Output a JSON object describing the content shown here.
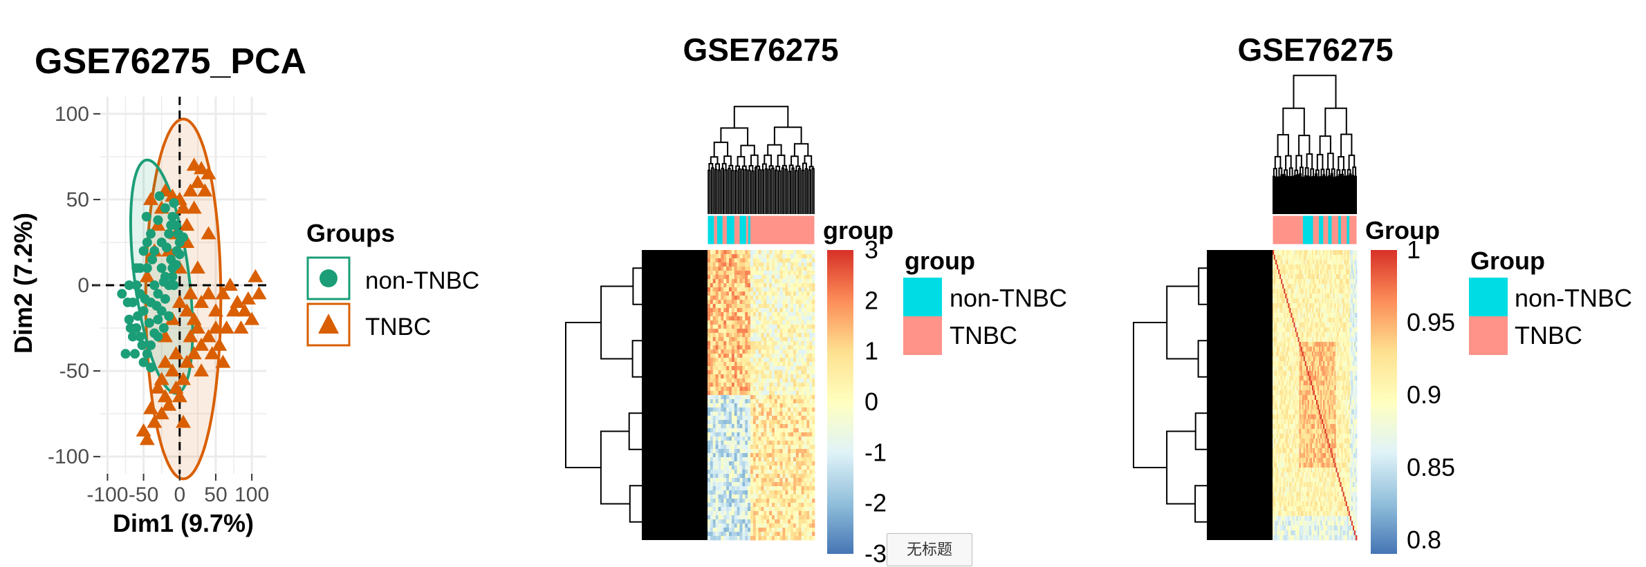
{
  "colors": {
    "non_tnbc_point": "#1b9e77",
    "tnbc_point": "#d95f02",
    "non_tnbc_anno": "#00dce4",
    "tnbc_anno": "#ff938a",
    "grid": "#ebebeb"
  },
  "tooltip": {
    "text": "无标题"
  },
  "chart_data": [
    {
      "type": "scatter",
      "title": "GSE76275_PCA",
      "xlabel": "Dim1 (9.7%)",
      "ylabel": "Dim2 (7.2%)",
      "xlim": [
        -110,
        120
      ],
      "ylim": [
        -110,
        110
      ],
      "x_ticks": [
        -100,
        -50,
        0,
        50,
        100
      ],
      "x_tick_labels": [
        "-100",
        "-50",
        "0",
        "50",
        "100"
      ],
      "y_ticks": [
        -100,
        -50,
        0,
        50,
        100
      ],
      "y_tick_labels": [
        "-100",
        "-50",
        "0",
        "50",
        "100"
      ],
      "grid": true,
      "legend": {
        "title": "Groups",
        "placement": "right",
        "entries": [
          "non-TNBC",
          "TNBC"
        ]
      },
      "series": [
        {
          "name": "non-TNBC",
          "marker": "circle",
          "ellipse": {
            "cx": -25,
            "cy": 5,
            "rx": 72,
            "ry": 36,
            "angle_deg": -68
          },
          "points": [
            [
              -50,
              -45
            ],
            [
              -45,
              -40
            ],
            [
              -40,
              -35
            ],
            [
              -35,
              -28
            ],
            [
              -30,
              -20
            ],
            [
              -25,
              -15
            ],
            [
              -20,
              -8
            ],
            [
              -15,
              0
            ],
            [
              -10,
              5
            ],
            [
              -5,
              12
            ],
            [
              0,
              18
            ],
            [
              5,
              28
            ],
            [
              -5,
              35
            ],
            [
              -10,
              40
            ],
            [
              -20,
              45
            ],
            [
              -30,
              38
            ],
            [
              -40,
              30
            ],
            [
              -50,
              20
            ],
            [
              -55,
              10
            ],
            [
              -60,
              0
            ],
            [
              -65,
              -10
            ],
            [
              -70,
              -20
            ],
            [
              -60,
              -25
            ],
            [
              -50,
              -15
            ],
            [
              -40,
              -10
            ],
            [
              -30,
              -5
            ],
            [
              -20,
              5
            ],
            [
              -10,
              10
            ],
            [
              0,
              25
            ],
            [
              -15,
              30
            ],
            [
              -25,
              25
            ],
            [
              -35,
              20
            ],
            [
              -45,
              10
            ],
            [
              -55,
              -5
            ],
            [
              -65,
              -30
            ],
            [
              -52,
              -35
            ],
            [
              -42,
              -22
            ],
            [
              -32,
              -12
            ],
            [
              -22,
              2
            ],
            [
              -12,
              15
            ],
            [
              -2,
              30
            ],
            [
              -8,
              48
            ],
            [
              -28,
              52
            ],
            [
              -18,
              22
            ],
            [
              -38,
              15
            ],
            [
              -48,
              -8
            ],
            [
              -58,
              -18
            ],
            [
              -68,
              -25
            ],
            [
              -75,
              -40
            ],
            [
              -62,
              -40
            ],
            [
              -72,
              -10
            ],
            [
              -80,
              -5
            ],
            [
              -45,
              25
            ],
            [
              -25,
              10
            ],
            [
              -35,
              0
            ],
            [
              -15,
              -18
            ],
            [
              -30,
              -30
            ],
            [
              -55,
              -30
            ],
            [
              -40,
              -48
            ],
            [
              -12,
              35
            ],
            [
              -4,
              20
            ],
            [
              -46,
              40
            ],
            [
              -60,
              10
            ],
            [
              -70,
              0
            ],
            [
              -22,
              -25
            ],
            [
              -8,
              0
            ]
          ]
        },
        {
          "name": "TNBC",
          "marker": "triangle",
          "ellipse": {
            "cx": 5,
            "cy": -8,
            "rx": 52,
            "ry": 105,
            "angle_deg": 0
          },
          "points": [
            [
              20,
              70
            ],
            [
              30,
              68
            ],
            [
              25,
              60
            ],
            [
              15,
              55
            ],
            [
              0,
              50
            ],
            [
              -10,
              52
            ],
            [
              -20,
              55
            ],
            [
              5,
              45
            ],
            [
              20,
              45
            ],
            [
              35,
              55
            ],
            [
              40,
              65
            ],
            [
              -25,
              45
            ],
            [
              -30,
              35
            ],
            [
              -40,
              50
            ],
            [
              -35,
              20
            ],
            [
              -45,
              5
            ],
            [
              10,
              35
            ],
            [
              -5,
              30
            ],
            [
              0,
              10
            ],
            [
              0,
              -10
            ],
            [
              10,
              -15
            ],
            [
              20,
              -20
            ],
            [
              30,
              -10
            ],
            [
              40,
              -5
            ],
            [
              50,
              -15
            ],
            [
              60,
              -5
            ],
            [
              70,
              0
            ],
            [
              80,
              -10
            ],
            [
              90,
              -15
            ],
            [
              100,
              -20
            ],
            [
              110,
              -5
            ],
            [
              105,
              5
            ],
            [
              50,
              -25
            ],
            [
              40,
              -30
            ],
            [
              30,
              -35
            ],
            [
              20,
              -40
            ],
            [
              10,
              -45
            ],
            [
              5,
              -55
            ],
            [
              -5,
              -60
            ],
            [
              -10,
              -50
            ],
            [
              -20,
              -45
            ],
            [
              -25,
              -55
            ],
            [
              -15,
              -70
            ],
            [
              -25,
              -75
            ],
            [
              -35,
              -80
            ],
            [
              -45,
              -90
            ],
            [
              -50,
              -85
            ],
            [
              -40,
              -72
            ],
            [
              -20,
              -65
            ],
            [
              0,
              -65
            ],
            [
              5,
              -80
            ],
            [
              -5,
              -40
            ],
            [
              15,
              -30
            ],
            [
              30,
              -50
            ],
            [
              45,
              -40
            ],
            [
              55,
              -35
            ],
            [
              65,
              -25
            ],
            [
              75,
              -15
            ],
            [
              85,
              -25
            ],
            [
              95,
              -8
            ],
            [
              60,
              -45
            ],
            [
              25,
              -25
            ],
            [
              15,
              -5
            ],
            [
              -10,
              -20
            ],
            [
              -20,
              -30
            ],
            [
              -30,
              -60
            ],
            [
              10,
              25
            ],
            [
              -15,
              20
            ],
            [
              40,
              30
            ],
            [
              25,
              10
            ]
          ]
        }
      ]
    },
    {
      "type": "heatmap",
      "title": "GSE76275",
      "color_scale": {
        "label": "group",
        "ticks": [
          3,
          2,
          1,
          0,
          -1,
          -2,
          -3
        ],
        "tick_labels": [
          "3",
          "2",
          "1",
          "0",
          "-1",
          "-2",
          "-3"
        ],
        "colors": [
          "#d73027",
          "#fc8d59",
          "#fee090",
          "#ffffbf",
          "#e0f3f8",
          "#91bfdb",
          "#4575b4"
        ]
      },
      "annotation_legend": {
        "title": "group",
        "entries": [
          "non-TNBC",
          "TNBC"
        ]
      },
      "column_annotation": "group",
      "row_dendrogram": true,
      "column_dendrogram": true
    },
    {
      "type": "heatmap",
      "title": "GSE76275",
      "color_scale": {
        "label": "Group",
        "ticks": [
          1,
          0.95,
          0.9,
          0.85,
          0.8
        ],
        "tick_labels": [
          "1",
          "0.95",
          "0.9",
          "0.85",
          "0.8"
        ],
        "colors": [
          "#d73027",
          "#fc8d59",
          "#fee090",
          "#ffffbf",
          "#e0f3f8",
          "#91bfdb",
          "#4575b4"
        ]
      },
      "annotation_legend": {
        "title": "Group",
        "entries": [
          "non-TNBC",
          "TNBC"
        ]
      },
      "column_annotation": "Group",
      "row_dendrogram": true,
      "column_dendrogram": true
    }
  ]
}
